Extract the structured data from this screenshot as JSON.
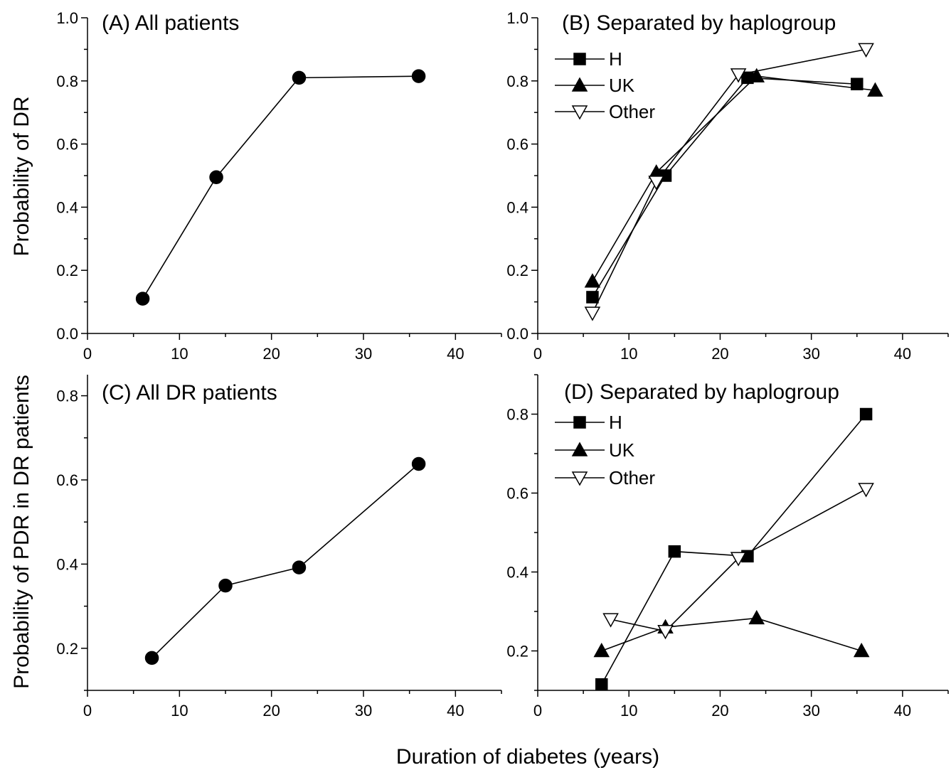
{
  "figure": {
    "xlabel": "Duration of diabetes (years)",
    "ylabel_top": "Probability of DR",
    "ylabel_bottom": "Probability of PDR in DR patients"
  },
  "chart_data": [
    {
      "id": "A",
      "type": "line",
      "title": "(A) All patients",
      "xlim": [
        0,
        45
      ],
      "ylim": [
        0,
        1.0
      ],
      "xticks": [
        0,
        10,
        20,
        30,
        40
      ],
      "yticks": [
        0.0,
        0.2,
        0.4,
        0.6,
        0.8,
        1.0
      ],
      "ytick_labels": [
        "0.0",
        "0.2",
        "0.4",
        "0.6",
        "0.8",
        "1.0"
      ],
      "grid": false,
      "series": [
        {
          "marker": "circle",
          "x": [
            6,
            14,
            23,
            36
          ],
          "y": [
            0.11,
            0.495,
            0.81,
            0.815
          ]
        }
      ]
    },
    {
      "id": "B",
      "type": "line",
      "title": "(B) Separated by haplogroup",
      "xlim": [
        0,
        45
      ],
      "ylim": [
        0,
        1.0
      ],
      "xticks": [
        0,
        10,
        20,
        30,
        40
      ],
      "yticks": [
        0.0,
        0.2,
        0.4,
        0.6,
        0.8,
        1.0
      ],
      "ytick_labels": [
        "0.0",
        "0.2",
        "0.4",
        "0.6",
        "0.8",
        "1.0"
      ],
      "grid": false,
      "legend": "top-left",
      "series": [
        {
          "name": "H",
          "marker": "square",
          "x": [
            6,
            14,
            23,
            35
          ],
          "y": [
            0.115,
            0.5,
            0.81,
            0.79
          ]
        },
        {
          "name": "UK",
          "marker": "triangle",
          "x": [
            6,
            13,
            24,
            37
          ],
          "y": [
            0.165,
            0.51,
            0.815,
            0.77
          ]
        },
        {
          "name": "Other",
          "marker": "triangle-down-open",
          "x": [
            6,
            13,
            22,
            36
          ],
          "y": [
            0.065,
            0.48,
            0.82,
            0.9
          ]
        }
      ]
    },
    {
      "id": "C",
      "type": "line",
      "title": "(C) All DR patients",
      "xlim": [
        0,
        45
      ],
      "ylim": [
        0.1,
        0.85
      ],
      "xticks": [
        0,
        10,
        20,
        30,
        40
      ],
      "yticks": [
        0.2,
        0.4,
        0.6,
        0.8
      ],
      "ytick_labels": [
        "0.2",
        "0.4",
        "0.6",
        "0.8"
      ],
      "grid": false,
      "series": [
        {
          "marker": "circle",
          "x": [
            7,
            15,
            23,
            36
          ],
          "y": [
            0.177,
            0.349,
            0.392,
            0.638
          ]
        }
      ]
    },
    {
      "id": "D",
      "type": "line",
      "title": "(D) Separated by haplogroup",
      "xlim": [
        0,
        45
      ],
      "ylim": [
        0.1,
        0.9
      ],
      "xticks": [
        0,
        10,
        20,
        30,
        40
      ],
      "yticks": [
        0.2,
        0.4,
        0.6,
        0.8
      ],
      "ytick_labels": [
        "0.2",
        "0.4",
        "0.6",
        "0.8"
      ],
      "grid": false,
      "legend": "top-left",
      "series": [
        {
          "name": "H",
          "marker": "square",
          "x": [
            7,
            15,
            23,
            36
          ],
          "y": [
            0.115,
            0.452,
            0.44,
            0.8
          ]
        },
        {
          "name": "UK",
          "marker": "triangle",
          "x": [
            7,
            14,
            24,
            35.5
          ],
          "y": [
            0.2,
            0.26,
            0.283,
            0.2
          ]
        },
        {
          "name": "Other",
          "marker": "triangle-down-open",
          "x": [
            8,
            14,
            22,
            36
          ],
          "y": [
            0.28,
            0.25,
            0.435,
            0.61
          ]
        }
      ]
    }
  ]
}
